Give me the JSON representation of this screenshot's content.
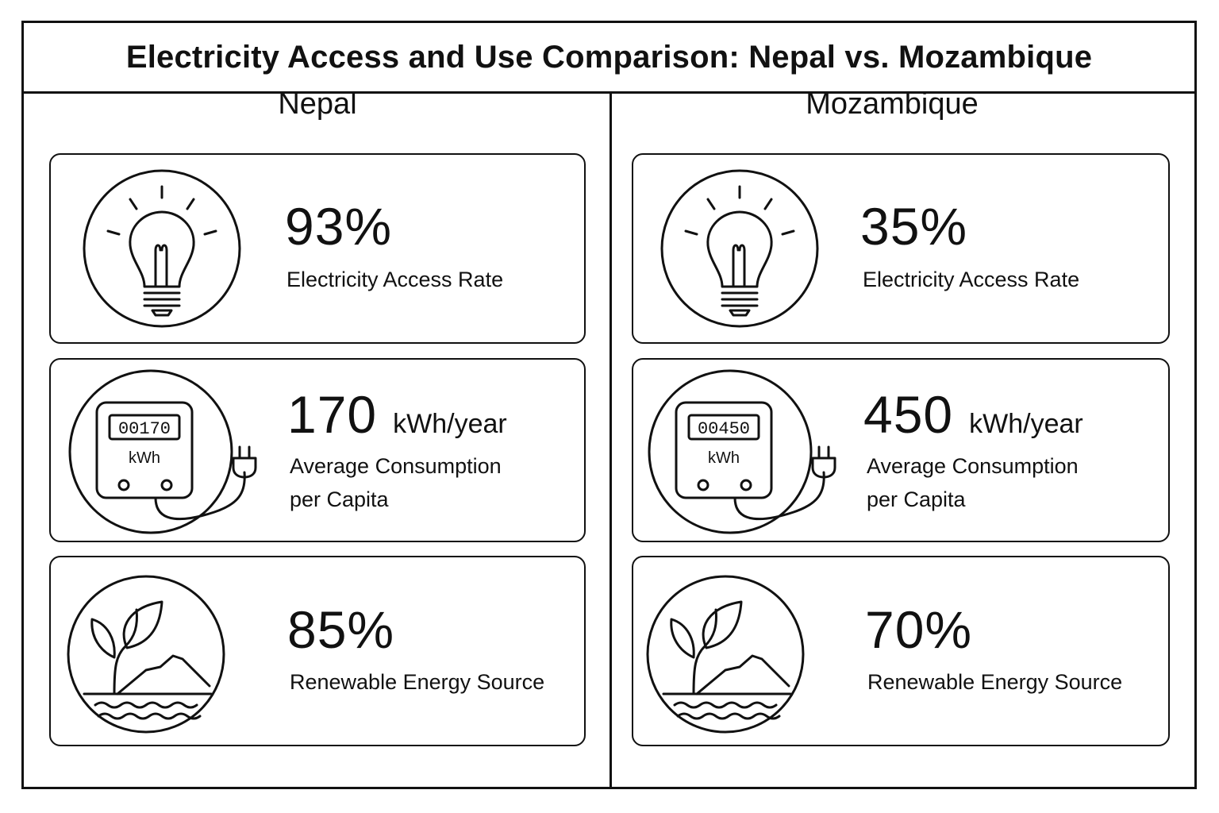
{
  "title": "Electricity Access and Use Comparison: Nepal vs. Mozambique",
  "colors": {
    "line": "#111111",
    "background": "#ffffff"
  },
  "countries": [
    {
      "name": "Nepal",
      "cards": [
        {
          "icon": "light-bulb-icon",
          "value": "93%",
          "unit": "",
          "label_lines": [
            "Electricity Access Rate"
          ]
        },
        {
          "icon": "electric-meter-icon",
          "meter_reading": "00170",
          "meter_unit": "kWh",
          "value": "170",
          "unit": "kWh/year",
          "label_lines": [
            "Average Consumption",
            "per Capita"
          ]
        },
        {
          "icon": "renewable-plant-icon",
          "value": "85%",
          "unit": "",
          "label_lines": [
            "Renewable Energy Source"
          ]
        }
      ]
    },
    {
      "name": "Mozambique",
      "cards": [
        {
          "icon": "light-bulb-icon",
          "value": "35%",
          "unit": "",
          "label_lines": [
            "Electricity Access Rate"
          ]
        },
        {
          "icon": "electric-meter-icon",
          "meter_reading": "00450",
          "meter_unit": "kWh",
          "value": "450",
          "unit": "kWh/year",
          "label_lines": [
            "Average Consumption",
            "per Capita"
          ]
        },
        {
          "icon": "renewable-plant-icon",
          "value": "70%",
          "unit": "",
          "label_lines": [
            "Renewable Energy Source"
          ]
        }
      ]
    }
  ]
}
